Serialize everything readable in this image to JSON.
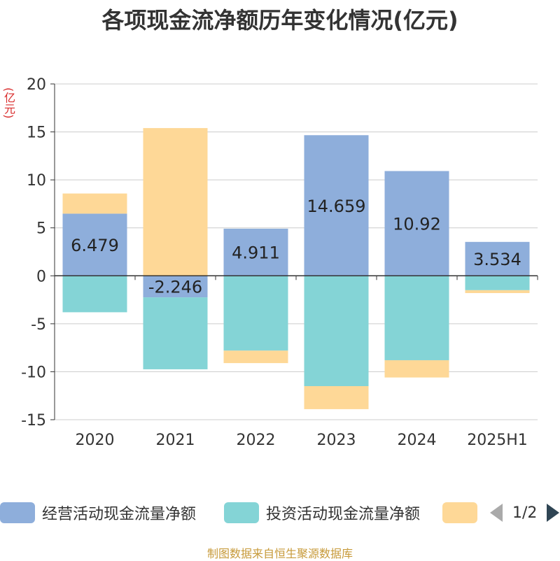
{
  "title": "各项现金流净额历年变化情况(亿元)",
  "unit_label": "(亿元)",
  "source": "制图数据来自恒生聚源数据库",
  "legend": {
    "items": [
      {
        "label": "经营活动现金流量净额",
        "color": "#8eaedb"
      },
      {
        "label": "投资活动现金流量净额",
        "color": "#84d4d6"
      },
      {
        "label": "",
        "color": "#fed897"
      }
    ],
    "page_text": "1/2"
  },
  "chart_data": {
    "type": "bar",
    "stacked": true,
    "categories": [
      "2020",
      "2021",
      "2022",
      "2023",
      "2024",
      "2025H1"
    ],
    "ylim": [
      -15,
      20
    ],
    "yticks": [
      -15,
      -10,
      -5,
      0,
      5,
      10,
      15,
      20
    ],
    "grid": true,
    "legend_position": "bottom",
    "series": [
      {
        "name": "经营活动现金流量净额",
        "color": "#8eaedb",
        "values": [
          6.479,
          -2.246,
          4.911,
          14.659,
          10.92,
          3.534
        ],
        "show_labels": true
      },
      {
        "name": "投资活动现金流量净额",
        "color": "#84d4d6",
        "values": [
          -3.8,
          -7.5,
          -7.8,
          -11.5,
          -8.8,
          -1.5
        ],
        "show_labels": false
      },
      {
        "color": "#fed897",
        "values": [
          2.1,
          15.4,
          -1.3,
          -2.4,
          -1.8,
          -0.3
        ],
        "show_labels": false
      }
    ]
  }
}
